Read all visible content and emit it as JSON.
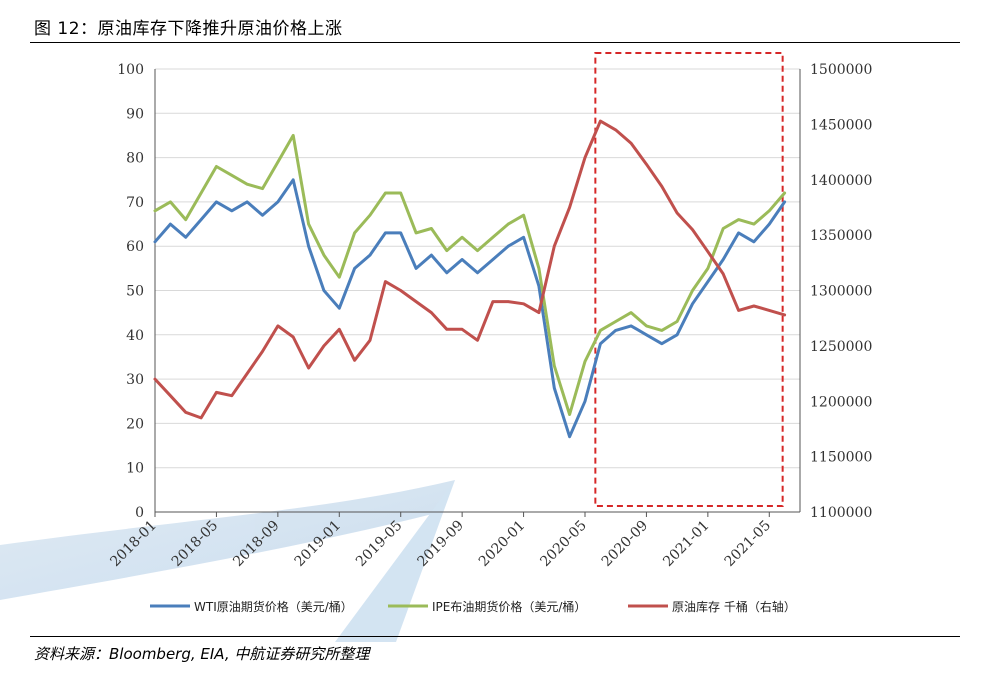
{
  "figure": {
    "title": "图 12：原油库存下降推升原油价格上涨",
    "source": "资料来源：Bloomberg, EIA, 中航证券研究所整理"
  },
  "colors": {
    "wti": "#4a7ebb",
    "brent": "#9bbb59",
    "inventory": "#c0504d",
    "highlight": "#d62728",
    "axis": "#555555",
    "grid": "#d9d9d9"
  },
  "chart_data": {
    "type": "line",
    "x_tick_labels": [
      "2018-01",
      "2018-05",
      "2018-09",
      "2019-01",
      "2019-05",
      "2019-09",
      "2020-01",
      "2020-05",
      "2020-09",
      "2021-01",
      "2021-05"
    ],
    "left_axis": {
      "ylim": [
        0,
        100
      ],
      "ticks": [
        "0",
        "10",
        "20",
        "30",
        "40",
        "50",
        "60",
        "70",
        "80",
        "90",
        "100"
      ]
    },
    "right_axis": {
      "ylim": [
        1100000,
        1500000
      ],
      "ticks": [
        "1100000",
        "1150000",
        "1200000",
        "1250000",
        "1300000",
        "1350000",
        "1400000",
        "1450000",
        "1500000"
      ]
    },
    "grid": "horizontal",
    "legend_position": "bottom",
    "highlight_box": {
      "x_range": [
        "2020-06",
        "2021-06"
      ],
      "style": "dashed"
    },
    "series": [
      {
        "name": "WTI原油期货价格（美元/桶）",
        "axis": "left",
        "x": [
          "2018-01",
          "2018-02",
          "2018-03",
          "2018-04",
          "2018-05",
          "2018-06",
          "2018-07",
          "2018-08",
          "2018-09",
          "2018-10",
          "2018-11",
          "2018-12",
          "2019-01",
          "2019-02",
          "2019-03",
          "2019-04",
          "2019-05",
          "2019-06",
          "2019-07",
          "2019-08",
          "2019-09",
          "2019-10",
          "2019-11",
          "2019-12",
          "2020-01",
          "2020-02",
          "2020-03",
          "2020-04",
          "2020-05",
          "2020-06",
          "2020-07",
          "2020-08",
          "2020-09",
          "2020-10",
          "2020-11",
          "2020-12",
          "2021-01",
          "2021-02",
          "2021-03",
          "2021-04",
          "2021-05",
          "2021-06"
        ],
        "values": [
          61,
          65,
          62,
          66,
          70,
          68,
          70,
          67,
          70,
          75,
          60,
          50,
          46,
          55,
          58,
          63,
          63,
          55,
          58,
          54,
          57,
          54,
          57,
          60,
          62,
          51,
          28,
          17,
          25,
          38,
          41,
          42,
          40,
          38,
          40,
          47,
          52,
          57,
          63,
          61,
          65,
          70
        ]
      },
      {
        "name": "IPE布油期货价格（美元/桶）",
        "axis": "left",
        "x": [
          "2018-01",
          "2018-02",
          "2018-03",
          "2018-04",
          "2018-05",
          "2018-06",
          "2018-07",
          "2018-08",
          "2018-09",
          "2018-10",
          "2018-11",
          "2018-12",
          "2019-01",
          "2019-02",
          "2019-03",
          "2019-04",
          "2019-05",
          "2019-06",
          "2019-07",
          "2019-08",
          "2019-09",
          "2019-10",
          "2019-11",
          "2019-12",
          "2020-01",
          "2020-02",
          "2020-03",
          "2020-04",
          "2020-05",
          "2020-06",
          "2020-07",
          "2020-08",
          "2020-09",
          "2020-10",
          "2020-11",
          "2020-12",
          "2021-01",
          "2021-02",
          "2021-03",
          "2021-04",
          "2021-05",
          "2021-06"
        ],
        "values": [
          68,
          70,
          66,
          72,
          78,
          76,
          74,
          73,
          79,
          85,
          65,
          58,
          53,
          63,
          67,
          72,
          72,
          63,
          64,
          59,
          62,
          59,
          62,
          65,
          67,
          55,
          33,
          22,
          34,
          41,
          43,
          45,
          42,
          41,
          43,
          50,
          55,
          64,
          66,
          65,
          68,
          72
        ]
      },
      {
        "name": "原油库存   千桶（右轴）",
        "axis": "right",
        "x": [
          "2018-01",
          "2018-02",
          "2018-03",
          "2018-04",
          "2018-05",
          "2018-06",
          "2018-07",
          "2018-08",
          "2018-09",
          "2018-10",
          "2018-11",
          "2018-12",
          "2019-01",
          "2019-02",
          "2019-03",
          "2019-04",
          "2019-05",
          "2019-06",
          "2019-07",
          "2019-08",
          "2019-09",
          "2019-10",
          "2019-11",
          "2019-12",
          "2020-01",
          "2020-02",
          "2020-03",
          "2020-04",
          "2020-05",
          "2020-06",
          "2020-07",
          "2020-08",
          "2020-09",
          "2020-10",
          "2020-11",
          "2020-12",
          "2021-01",
          "2021-02",
          "2021-03",
          "2021-04",
          "2021-05",
          "2021-06"
        ],
        "values": [
          1220000,
          1205000,
          1190000,
          1185000,
          1208000,
          1205000,
          1225000,
          1245000,
          1268000,
          1258000,
          1230000,
          1250000,
          1265000,
          1237000,
          1255000,
          1308000,
          1300000,
          1290000,
          1280000,
          1265000,
          1265000,
          1255000,
          1290000,
          1290000,
          1288000,
          1280000,
          1340000,
          1375000,
          1420000,
          1453000,
          1445000,
          1433000,
          1414000,
          1394000,
          1370000,
          1355000,
          1335000,
          1315000,
          1282000,
          1286000,
          1282000,
          1278000
        ]
      }
    ]
  }
}
